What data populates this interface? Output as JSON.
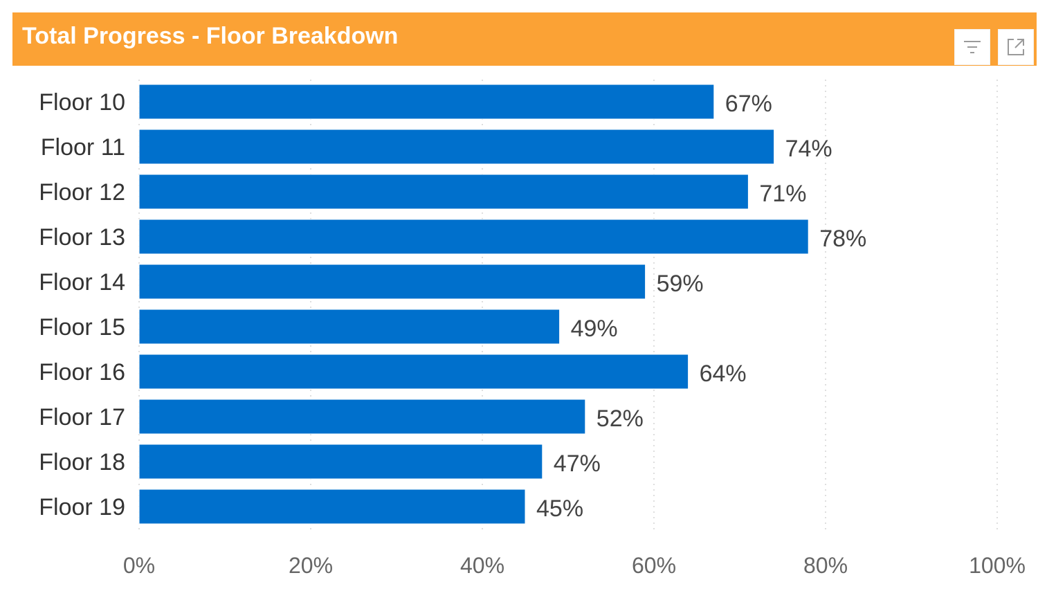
{
  "header": {
    "title": "Total Progress - Floor Breakdown",
    "background": "#fba235",
    "title_color": "#ffffff",
    "buttons": [
      {
        "name": "filter",
        "icon": "filter-icon"
      },
      {
        "name": "expand",
        "icon": "expand-icon"
      }
    ]
  },
  "chart_data": {
    "type": "bar",
    "orientation": "horizontal",
    "categories": [
      "Floor 10",
      "Floor 11",
      "Floor 12",
      "Floor 13",
      "Floor 14",
      "Floor 15",
      "Floor 16",
      "Floor 17",
      "Floor 18",
      "Floor 19"
    ],
    "values": [
      67,
      74,
      71,
      78,
      59,
      49,
      64,
      52,
      47,
      45
    ],
    "data_labels": [
      "67%",
      "74%",
      "71%",
      "78%",
      "59%",
      "49%",
      "64%",
      "52%",
      "47%",
      "45%"
    ],
    "xlim": [
      0,
      100
    ],
    "x_ticks": [
      0,
      20,
      40,
      60,
      80,
      100
    ],
    "x_tick_labels": [
      "0%",
      "20%",
      "40%",
      "60%",
      "80%",
      "100%"
    ],
    "grid": "vertical-dotted",
    "bar_color": "#0070cc",
    "legend": "none"
  }
}
